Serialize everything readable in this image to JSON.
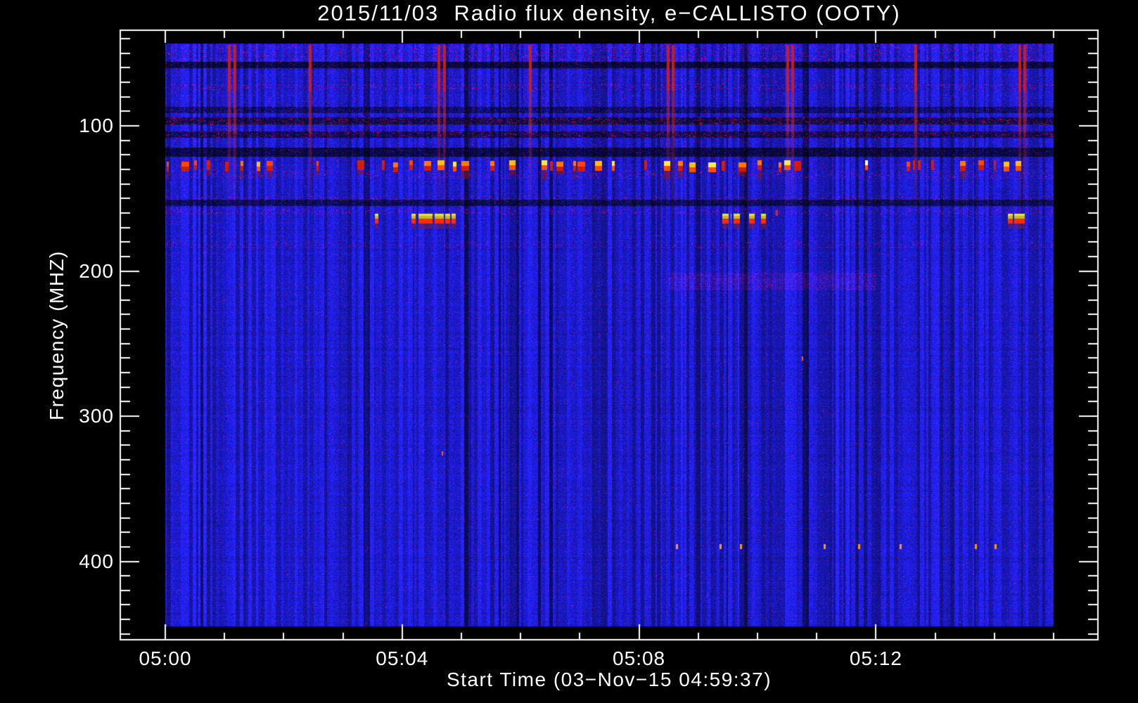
{
  "page": {
    "background": "#000000"
  },
  "chart_data": {
    "type": "heatmap",
    "title": "2015/11/03  Radio flux density, e−CALLISTO (OOTY)",
    "xlabel": "Start Time (03−Nov−15 04:59:37)",
    "ylabel": "Frequency (MHZ)",
    "x_axis": {
      "major_tick_labels": [
        "05:00",
        "05:04",
        "05:08",
        "05:12"
      ],
      "major_tick_minutes": [
        0,
        4,
        8,
        12
      ],
      "minor_tick_interval_min": 1,
      "range_minutes": [
        -0.76,
        15.75
      ],
      "start_time": "04:59:37",
      "date": "03-Nov-15"
    },
    "y_axis": {
      "major_tick_labels": [
        "100",
        "200",
        "300",
        "400"
      ],
      "major_tick_values": [
        100,
        200,
        300,
        400
      ],
      "minor_tick_interval_mhz": 10,
      "minor_tick_range_mhz": [
        40,
        450
      ],
      "range_mhz": [
        34,
        454
      ],
      "direction": "increasing-downward"
    },
    "image_extent": {
      "time_minutes_after_0500": [
        0,
        15.0
      ],
      "freq_mhz": [
        43,
        445
      ]
    },
    "palette": {
      "background": "#000000",
      "axis_color": "#ffffff",
      "base_blue": "#1b1bd8",
      "dark_band_blue": "#06064a",
      "burst_red": "#d21e14",
      "dash_colors": [
        "#d71e08",
        "#ff4600",
        "#ff780a",
        "#ffbe19",
        "#ffeb46",
        "#ffffff"
      ],
      "blob_yellow": "#c3be23",
      "blob_bright": "#e1e14b",
      "blob_red": "#fa2d05",
      "dot_orange": "#ff9619",
      "pink_tint": "#8a2a9a"
    },
    "features": {
      "burst_streak_times_min": [
        1.08,
        1.18,
        2.45,
        4.62,
        4.72,
        6.16,
        8.49,
        8.58,
        10.51,
        10.59,
        12.67,
        14.43,
        14.51
      ],
      "burst_streak_freq_span_mhz": [
        43,
        160
      ],
      "rfi_dash_band": {
        "freq_mhz": [
          124,
          130
        ],
        "coverage": "intermittent red/orange/yellow dashes across full width"
      },
      "rfi_blob_band": {
        "freq_mhz": [
          161,
          167
        ],
        "clusters_min": [
          [
            3.54,
            3.6
          ],
          [
            4.16,
            4.9
          ],
          [
            9.41,
            9.56
          ],
          [
            9.6,
            9.7
          ],
          [
            9.86,
            9.95
          ],
          [
            10.06,
            10.19
          ],
          [
            14.23,
            14.31
          ],
          [
            14.33,
            14.51
          ]
        ]
      },
      "red_tick": {
        "time_min": 10.31,
        "freq_mhz": 158
      },
      "dark_bands_mhz": [
        [
          56,
          60,
          0.4
        ],
        [
          87,
          91,
          0.66
        ],
        [
          94,
          99,
          0.44
        ],
        [
          104,
          108,
          0.5
        ],
        [
          115,
          121,
          0.44
        ],
        [
          151,
          155,
          0.55
        ]
      ],
      "red_speckle_rows_mhz": [
        [
          71,
          75,
          0.1
        ],
        [
          94,
          99,
          0.13
        ],
        [
          104,
          108,
          0.12
        ],
        [
          131,
          136,
          0.07
        ],
        [
          148,
          151,
          0.08
        ],
        [
          157,
          161,
          0.09
        ],
        [
          180,
          184,
          0.06
        ]
      ],
      "bright_top_band_mhz": [
        43,
        55
      ],
      "pink_patch": {
        "time_min": [
          8.5,
          12.0
        ],
        "freq_mhz": [
          201,
          213
        ]
      },
      "dot_row": {
        "freq_mhz": 388,
        "times_min": [
          8.62,
          9.36,
          9.7,
          11.12,
          11.7,
          12.4,
          13.67,
          14.0
        ]
      },
      "isolated_dots": [
        {
          "time_min": 4.67,
          "freq_mhz": 324
        },
        {
          "time_min": 10.75,
          "freq_mhz": 259
        }
      ]
    }
  }
}
